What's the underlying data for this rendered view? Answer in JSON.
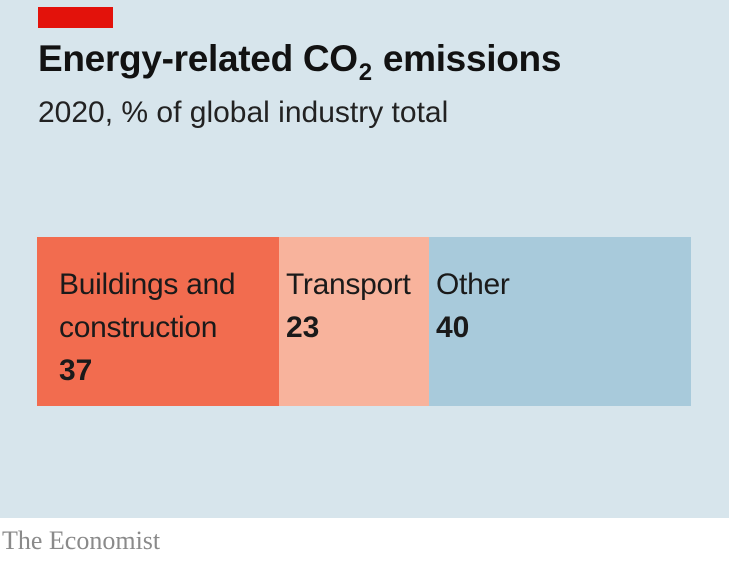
{
  "header": {
    "title_before": "Energy-related CO",
    "title_subscript": "2",
    "title_after": " emissions",
    "subtitle": "2020, % of global industry total"
  },
  "chart_data": {
    "type": "bar",
    "orientation": "horizontal-stacked",
    "title": "Energy-related CO2 emissions",
    "subtitle": "2020, % of global industry total",
    "total": 100,
    "categories": [
      "Buildings and construction",
      "Transport",
      "Other"
    ],
    "label_lines": [
      [
        "Buildings and",
        "construction"
      ],
      [
        "Transport"
      ],
      [
        "Other"
      ]
    ],
    "values": [
      37,
      23,
      40
    ],
    "colors": [
      "#f26c4f",
      "#f8b39c",
      "#a8cadb"
    ]
  },
  "footer": {
    "credit": "The Economist"
  },
  "colors": {
    "background": "#d7e5ec",
    "accent": "#e3120b"
  }
}
